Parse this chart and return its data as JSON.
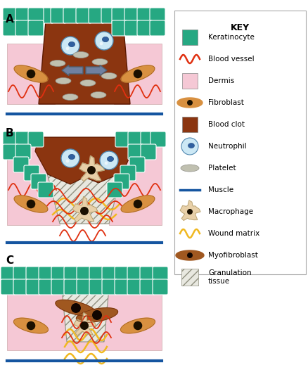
{
  "bg_color": "#ffffff",
  "dermis_color": "#f5c8d5",
  "keratinocyte_color": "#26a882",
  "blood_clot_color": "#8b3510",
  "granulation_bg": "#e8e8e0",
  "neutrophil_fill": "#cce8f5",
  "neutrophil_inner": "#3060a0",
  "platelet_color": "#b0b0a0",
  "fibroblast_color": "#d89040",
  "macrophage_color": "#e8d0a8",
  "wound_matrix_color": "#f0b820",
  "myofibroblast_color": "#a05820",
  "blood_vessel_color": "#e03010",
  "muscle_color": "#1555a0",
  "arrow_color": "#7080a0",
  "key_items": [
    {
      "label": "Keratinocyte",
      "type": "square",
      "color": "#26a882"
    },
    {
      "label": "Blood vessel",
      "type": "wave",
      "color": "#e03010"
    },
    {
      "label": "Dermis",
      "type": "square",
      "color": "#f5c8d5"
    },
    {
      "label": "Fibroblast",
      "type": "fibroblast",
      "color": "#d89040"
    },
    {
      "label": "Blood clot",
      "type": "square",
      "color": "#8b3510"
    },
    {
      "label": "Neutrophil",
      "type": "neutrophil",
      "color": "#cce8f5"
    },
    {
      "label": "Platelet",
      "type": "platelet",
      "color": "#b8b8a8"
    },
    {
      "label": "Muscle",
      "type": "line",
      "color": "#1555a0"
    },
    {
      "label": "Macrophage",
      "type": "macrophage",
      "color": "#e8d0a8"
    },
    {
      "label": "Wound matrix",
      "type": "wave",
      "color": "#f0b820"
    },
    {
      "label": "Myofibroblast",
      "type": "myofibroblast",
      "color": "#a05820"
    },
    {
      "label": "Granulation\ntissue",
      "type": "hatch",
      "color": "#e8e8e0"
    }
  ]
}
